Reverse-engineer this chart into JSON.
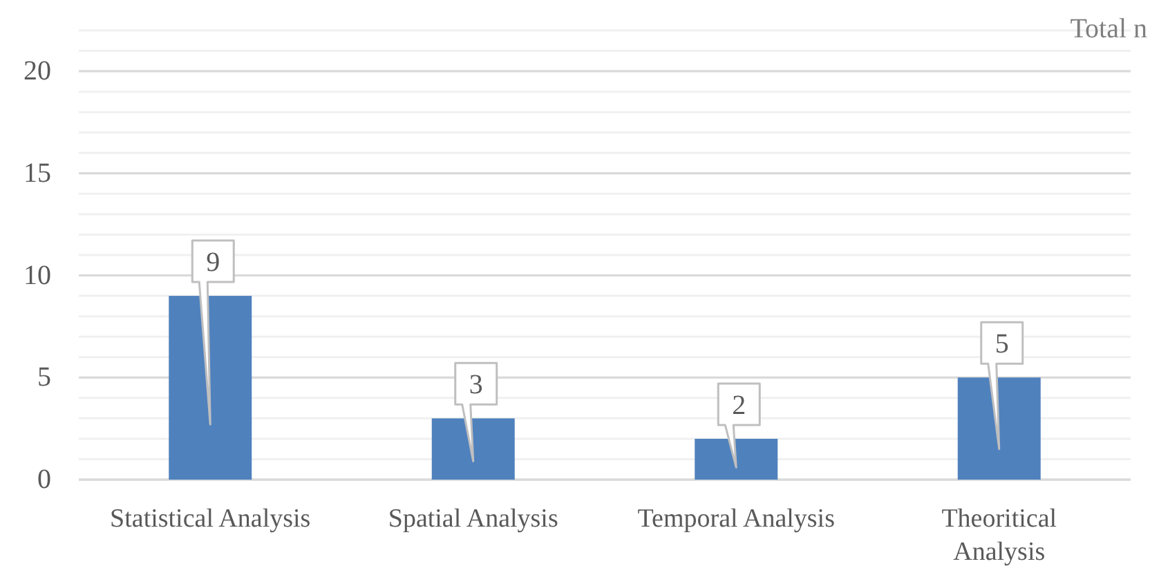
{
  "chart_data": {
    "type": "bar",
    "ylabel": "Total n",
    "categories": [
      "Statistical Analysis",
      "Spatial Analysis",
      "Temporal Analysis",
      "Theoritical Analysis"
    ],
    "values": [
      9,
      3,
      2,
      5
    ],
    "color": "#4f81bd",
    "ylim": [
      0,
      22
    ],
    "yticks": [
      0,
      5,
      10,
      15,
      20
    ],
    "grid": "y",
    "data_labels": true
  }
}
